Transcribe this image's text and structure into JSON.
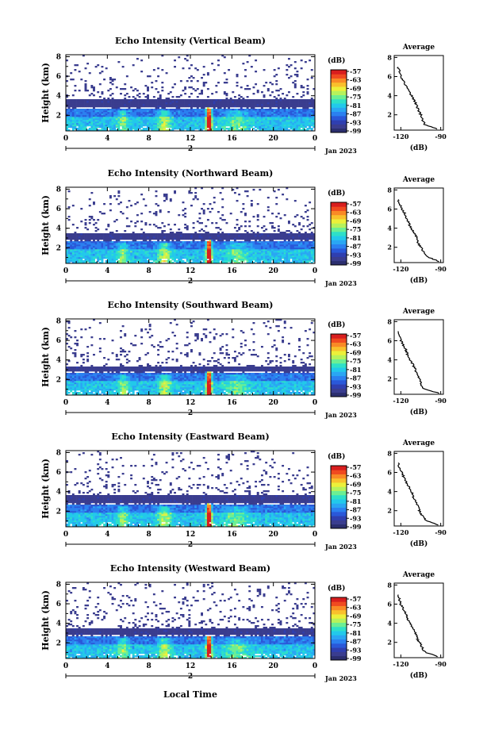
{
  "figure": {
    "xlabel": "Local Time"
  },
  "colorbar": {
    "unit_label": "(dB)",
    "tick_labels": [
      "-57",
      "-63",
      "-69",
      "-75",
      "-81",
      "-87",
      "-93",
      "-99"
    ],
    "colors": [
      "#2b2e6e",
      "#3a3d8f",
      "#2f3fb0",
      "#2a58d9",
      "#2b80f0",
      "#2aa6f3",
      "#22c9ea",
      "#2ee0c8",
      "#6cef93",
      "#b6f25c",
      "#ecf03a",
      "#f9c02c",
      "#f98a26",
      "#f04a20",
      "#d81e1e"
    ]
  },
  "chart_data": [
    {
      "type": "heatmap",
      "title": "Echo Intensity (Vertical Beam)",
      "ylabel": "Height (km)",
      "x_ticks": [
        "0",
        "4",
        "8",
        "12",
        "16",
        "20",
        "0"
      ],
      "y_ticks": [
        "2",
        "4",
        "6",
        "8"
      ],
      "date_label": "Jan 2023",
      "date_tick": "2",
      "xlim": [
        0,
        24
      ],
      "ylim": [
        0.4,
        8.2
      ],
      "colorbar_range_db": [
        -99,
        -57
      ],
      "dense_layer_top_km": 3.6,
      "peak_hour": 13.8,
      "average_profile": {
        "title": "Average",
        "xlabel": "(dB)",
        "x_ticks": [
          "-120",
          "-90"
        ],
        "y_ticks": [
          "2",
          "4",
          "6",
          "8"
        ],
        "xlim": [
          -125,
          -88
        ],
        "ylim": [
          0.4,
          8.2
        ],
        "heights_km": [
          0.5,
          1.0,
          1.5,
          2.0,
          2.5,
          3.0,
          3.5,
          4.0,
          4.5,
          5.0,
          5.5,
          6.0,
          6.5,
          7.0
        ],
        "values_db": [
          -92,
          -102,
          -104,
          -105,
          -107,
          -108,
          -110,
          -112,
          -114,
          -116,
          -118,
          -120,
          -121,
          -122
        ]
      }
    },
    {
      "type": "heatmap",
      "title": "Echo Intensity (Northward Beam)",
      "ylabel": "Height (km)",
      "x_ticks": [
        "0",
        "4",
        "8",
        "12",
        "16",
        "20",
        "0"
      ],
      "y_ticks": [
        "2",
        "4",
        "6",
        "8"
      ],
      "date_label": "Jan 2023",
      "date_tick": "2",
      "xlim": [
        0,
        24
      ],
      "ylim": [
        0.4,
        8.2
      ],
      "colorbar_range_db": [
        -99,
        -57
      ],
      "dense_layer_top_km": 3.5,
      "peak_hour": 13.8,
      "average_profile": {
        "title": "Average",
        "xlabel": "(dB)",
        "x_ticks": [
          "-120",
          "-90"
        ],
        "y_ticks": [
          "2",
          "4",
          "6",
          "8"
        ],
        "xlim": [
          -125,
          -88
        ],
        "ylim": [
          0.4,
          8.2
        ],
        "heights_km": [
          0.5,
          1.0,
          1.5,
          2.0,
          2.5,
          3.0,
          3.5,
          4.0,
          4.5,
          5.0,
          5.5,
          6.0,
          6.5,
          7.0
        ],
        "values_db": [
          -91,
          -100,
          -103,
          -105,
          -107,
          -108,
          -110,
          -112,
          -114,
          -116,
          -117,
          -119,
          -121,
          -122
        ]
      }
    },
    {
      "type": "heatmap",
      "title": "Echo Intensity (Southward Beam)",
      "ylabel": "Height (km)",
      "x_ticks": [
        "0",
        "4",
        "8",
        "12",
        "16",
        "20",
        "0"
      ],
      "y_ticks": [
        "2",
        "4",
        "6",
        "8"
      ],
      "date_label": "Jan 2023",
      "date_tick": "2",
      "xlim": [
        0,
        24
      ],
      "ylim": [
        0.4,
        8.2
      ],
      "colorbar_range_db": [
        -99,
        -57
      ],
      "dense_layer_top_km": 3.3,
      "peak_hour": 13.8,
      "average_profile": {
        "title": "Average",
        "xlabel": "(dB)",
        "x_ticks": [
          "-120",
          "-90"
        ],
        "y_ticks": [
          "2",
          "4",
          "6",
          "8"
        ],
        "xlim": [
          -125,
          -88
        ],
        "ylim": [
          0.4,
          8.2
        ],
        "heights_km": [
          0.5,
          1.0,
          1.5,
          2.0,
          2.5,
          3.0,
          3.5,
          4.0,
          4.5,
          5.0,
          5.5,
          6.0,
          6.5,
          7.0
        ],
        "values_db": [
          -91,
          -103,
          -105,
          -106,
          -108,
          -109,
          -111,
          -113,
          -115,
          -116,
          -118,
          -120,
          -121,
          -122
        ]
      }
    },
    {
      "type": "heatmap",
      "title": "Echo Intensity (Eastward Beam)",
      "ylabel": "Height (km)",
      "x_ticks": [
        "0",
        "4",
        "8",
        "12",
        "16",
        "20",
        "0"
      ],
      "y_ticks": [
        "2",
        "4",
        "6",
        "8"
      ],
      "date_label": "Jan 2023",
      "date_tick": "2",
      "xlim": [
        0,
        24
      ],
      "ylim": [
        0.4,
        8.2
      ],
      "colorbar_range_db": [
        -99,
        -57
      ],
      "dense_layer_top_km": 3.6,
      "peak_hour": 13.8,
      "average_profile": {
        "title": "Average",
        "xlabel": "(dB)",
        "x_ticks": [
          "-120",
          "-90"
        ],
        "y_ticks": [
          "2",
          "4",
          "6",
          "8"
        ],
        "xlim": [
          -125,
          -88
        ],
        "ylim": [
          0.4,
          8.2
        ],
        "heights_km": [
          0.5,
          1.0,
          1.5,
          2.0,
          2.5,
          3.0,
          3.5,
          4.0,
          4.5,
          5.0,
          5.5,
          6.0,
          6.5,
          7.0
        ],
        "values_db": [
          -92,
          -101,
          -104,
          -106,
          -107,
          -109,
          -111,
          -112,
          -114,
          -116,
          -118,
          -119,
          -121,
          -122
        ]
      }
    },
    {
      "type": "heatmap",
      "title": "Echo Intensity (Westward Beam)",
      "ylabel": "Height (km)",
      "x_ticks": [
        "0",
        "4",
        "8",
        "12",
        "16",
        "20",
        "0"
      ],
      "y_ticks": [
        "2",
        "4",
        "6",
        "8"
      ],
      "date_label": "Jan 2023",
      "date_tick": "2",
      "xlim": [
        0,
        24
      ],
      "ylim": [
        0.4,
        8.2
      ],
      "colorbar_range_db": [
        -99,
        -57
      ],
      "dense_layer_top_km": 3.5,
      "peak_hour": 13.8,
      "average_profile": {
        "title": "Average",
        "xlabel": "(dB)",
        "x_ticks": [
          "-120",
          "-90"
        ],
        "y_ticks": [
          "2",
          "4",
          "6",
          "8"
        ],
        "xlim": [
          -125,
          -88
        ],
        "ylim": [
          0.4,
          8.2
        ],
        "heights_km": [
          0.5,
          1.0,
          1.5,
          2.0,
          2.5,
          3.0,
          3.5,
          4.0,
          4.5,
          5.0,
          5.5,
          6.0,
          6.5,
          7.0
        ],
        "values_db": [
          -92,
          -102,
          -104,
          -106,
          -108,
          -109,
          -111,
          -113,
          -115,
          -116,
          -118,
          -120,
          -121,
          -122
        ]
      }
    }
  ]
}
